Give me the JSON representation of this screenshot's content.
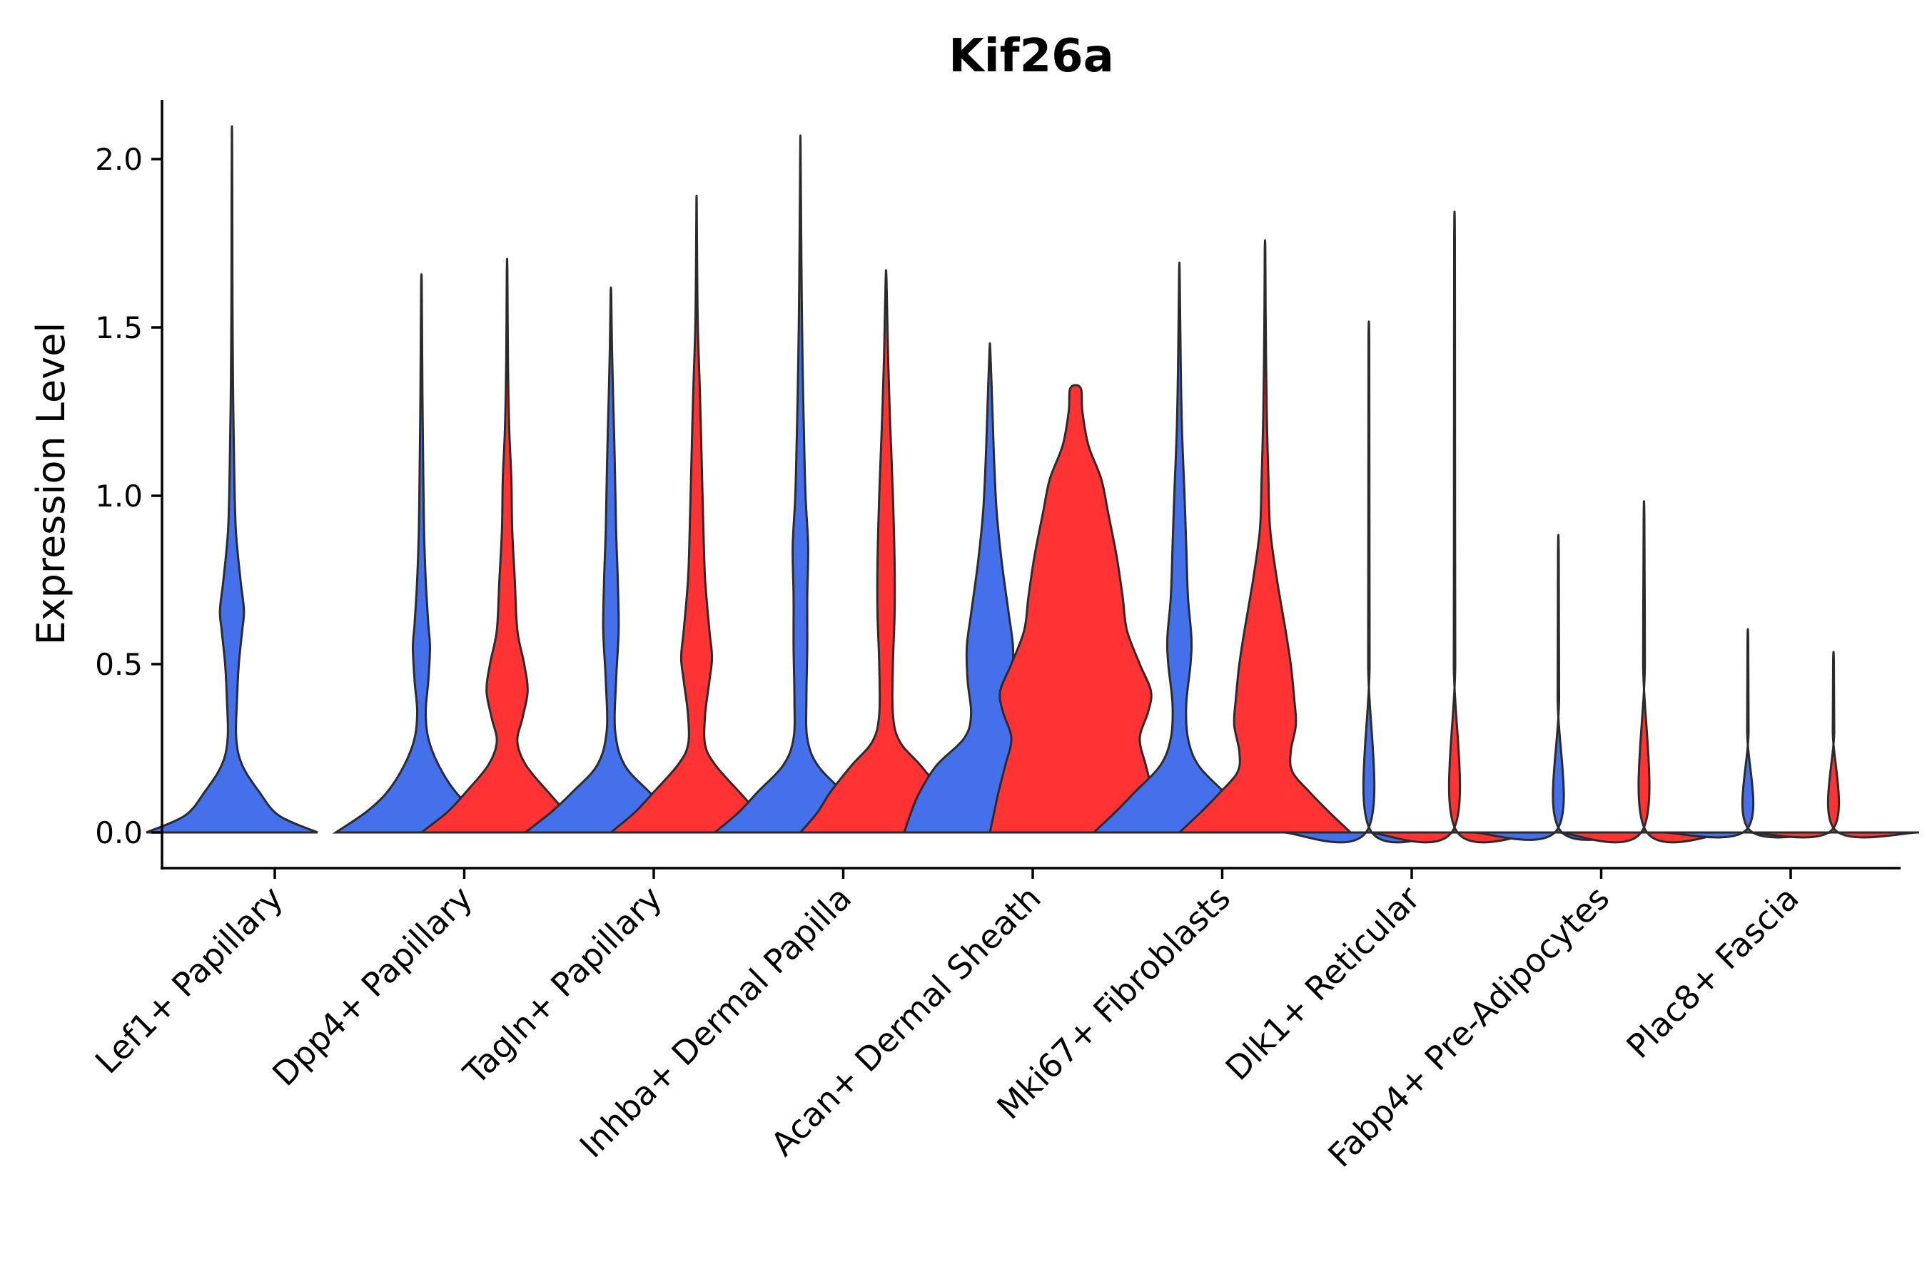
{
  "chart_data": {
    "type": "violin",
    "title": "Kif26a",
    "xlabel": "",
    "ylabel": "Expression Level",
    "ylim": [
      -0.1,
      2.2
    ],
    "yticks": [
      "0.0",
      "0.5",
      "1.0",
      "1.5",
      "2.0"
    ],
    "categories": [
      "Lef1+ Papillary",
      "Dpp4+ Papillary",
      "Tagln+ Papillary",
      "Inhba+ Dermal Papilla",
      "Acan+ Dermal Sheath",
      "Mki67+ Fibroblasts",
      "Dlk1+ Reticular",
      "Fabp4+ Pre-Adipocytes",
      "Plac8+ Fascia"
    ],
    "series_colors": {
      "group1": "#4570EB",
      "group2": "#FF3333"
    },
    "violins": [
      {
        "category": 0,
        "group": "group1",
        "max": 2.07,
        "profile": [
          [
            0,
            1.0
          ],
          [
            0.05,
            0.55
          ],
          [
            0.12,
            0.32
          ],
          [
            0.2,
            0.12
          ],
          [
            0.28,
            0.05
          ],
          [
            0.4,
            0.06
          ],
          [
            0.5,
            0.08
          ],
          [
            0.6,
            0.12
          ],
          [
            0.66,
            0.14
          ],
          [
            0.75,
            0.1
          ],
          [
            0.9,
            0.045
          ],
          [
            1.1,
            0.025
          ],
          [
            1.35,
            0.012
          ],
          [
            1.6,
            0.006
          ],
          [
            1.85,
            0.004
          ],
          [
            2.07,
            0.002
          ]
        ]
      },
      {
        "category": 1,
        "group": "group1",
        "max": 1.64,
        "profile": [
          [
            0,
            1.0
          ],
          [
            0.06,
            0.65
          ],
          [
            0.12,
            0.4
          ],
          [
            0.2,
            0.2
          ],
          [
            0.28,
            0.08
          ],
          [
            0.36,
            0.05
          ],
          [
            0.45,
            0.08
          ],
          [
            0.55,
            0.1
          ],
          [
            0.62,
            0.08
          ],
          [
            0.75,
            0.05
          ],
          [
            0.9,
            0.03
          ],
          [
            1.1,
            0.02
          ],
          [
            1.3,
            0.012
          ],
          [
            1.5,
            0.007
          ],
          [
            1.64,
            0.003
          ]
        ]
      },
      {
        "category": 1,
        "group": "group2",
        "max": 1.67,
        "profile": [
          [
            0,
            1.0
          ],
          [
            0.06,
            0.7
          ],
          [
            0.12,
            0.48
          ],
          [
            0.2,
            0.22
          ],
          [
            0.27,
            0.12
          ],
          [
            0.34,
            0.18
          ],
          [
            0.42,
            0.24
          ],
          [
            0.5,
            0.2
          ],
          [
            0.6,
            0.12
          ],
          [
            0.75,
            0.09
          ],
          [
            0.9,
            0.06
          ],
          [
            1.05,
            0.05
          ],
          [
            1.2,
            0.025
          ],
          [
            1.4,
            0.01
          ],
          [
            1.67,
            0.003
          ]
        ]
      },
      {
        "category": 2,
        "group": "group1",
        "max": 1.6,
        "profile": [
          [
            0,
            1.0
          ],
          [
            0.06,
            0.7
          ],
          [
            0.12,
            0.45
          ],
          [
            0.2,
            0.16
          ],
          [
            0.3,
            0.05
          ],
          [
            0.45,
            0.06
          ],
          [
            0.6,
            0.09
          ],
          [
            0.75,
            0.08
          ],
          [
            0.9,
            0.06
          ],
          [
            1.1,
            0.045
          ],
          [
            1.3,
            0.025
          ],
          [
            1.45,
            0.012
          ],
          [
            1.6,
            0.003
          ]
        ]
      },
      {
        "category": 2,
        "group": "group2",
        "max": 1.87,
        "profile": [
          [
            0,
            1.0
          ],
          [
            0.06,
            0.72
          ],
          [
            0.12,
            0.5
          ],
          [
            0.2,
            0.22
          ],
          [
            0.26,
            0.1
          ],
          [
            0.35,
            0.1
          ],
          [
            0.45,
            0.15
          ],
          [
            0.52,
            0.18
          ],
          [
            0.6,
            0.15
          ],
          [
            0.75,
            0.1
          ],
          [
            0.9,
            0.08
          ],
          [
            1.1,
            0.06
          ],
          [
            1.3,
            0.04
          ],
          [
            1.5,
            0.015
          ],
          [
            1.7,
            0.006
          ],
          [
            1.87,
            0.002
          ]
        ]
      },
      {
        "category": 3,
        "group": "group1",
        "max": 2.04,
        "profile": [
          [
            0,
            1.0
          ],
          [
            0.06,
            0.72
          ],
          [
            0.12,
            0.5
          ],
          [
            0.2,
            0.2
          ],
          [
            0.28,
            0.08
          ],
          [
            0.4,
            0.07
          ],
          [
            0.55,
            0.08
          ],
          [
            0.7,
            0.08
          ],
          [
            0.85,
            0.09
          ],
          [
            1.0,
            0.06
          ],
          [
            1.2,
            0.04
          ],
          [
            1.4,
            0.025
          ],
          [
            1.6,
            0.015
          ],
          [
            1.8,
            0.008
          ],
          [
            2.04,
            0.002
          ]
        ]
      },
      {
        "category": 3,
        "group": "group2",
        "max": 1.64,
        "profile": [
          [
            0,
            1.0
          ],
          [
            0.06,
            0.8
          ],
          [
            0.12,
            0.65
          ],
          [
            0.2,
            0.4
          ],
          [
            0.27,
            0.16
          ],
          [
            0.35,
            0.08
          ],
          [
            0.5,
            0.08
          ],
          [
            0.65,
            0.1
          ],
          [
            0.8,
            0.1
          ],
          [
            1.0,
            0.08
          ],
          [
            1.2,
            0.05
          ],
          [
            1.4,
            0.025
          ],
          [
            1.64,
            0.005
          ]
        ]
      },
      {
        "category": 4,
        "group": "group1",
        "max": 1.43,
        "profile": [
          [
            0,
            1.0
          ],
          [
            0.06,
            0.92
          ],
          [
            0.12,
            0.82
          ],
          [
            0.2,
            0.62
          ],
          [
            0.28,
            0.3
          ],
          [
            0.35,
            0.22
          ],
          [
            0.45,
            0.26
          ],
          [
            0.55,
            0.27
          ],
          [
            0.65,
            0.22
          ],
          [
            0.8,
            0.14
          ],
          [
            0.95,
            0.08
          ],
          [
            1.1,
            0.05
          ],
          [
            1.25,
            0.03
          ],
          [
            1.43,
            0.005
          ]
        ]
      },
      {
        "category": 4,
        "group": "group2",
        "max": 1.32,
        "profile": [
          [
            0,
            1.0
          ],
          [
            0.06,
            0.95
          ],
          [
            0.12,
            0.9
          ],
          [
            0.2,
            0.82
          ],
          [
            0.28,
            0.75
          ],
          [
            0.36,
            0.85
          ],
          [
            0.42,
            0.88
          ],
          [
            0.5,
            0.75
          ],
          [
            0.6,
            0.6
          ],
          [
            0.7,
            0.55
          ],
          [
            0.82,
            0.48
          ],
          [
            0.95,
            0.38
          ],
          [
            1.05,
            0.3
          ],
          [
            1.15,
            0.15
          ],
          [
            1.25,
            0.08
          ],
          [
            1.32,
            0.06
          ]
        ]
      },
      {
        "category": 5,
        "group": "group1",
        "max": 1.66,
        "profile": [
          [
            0,
            1.0
          ],
          [
            0.06,
            0.75
          ],
          [
            0.12,
            0.52
          ],
          [
            0.2,
            0.22
          ],
          [
            0.28,
            0.1
          ],
          [
            0.38,
            0.08
          ],
          [
            0.5,
            0.13
          ],
          [
            0.58,
            0.14
          ],
          [
            0.7,
            0.1
          ],
          [
            0.85,
            0.08
          ],
          [
            1.0,
            0.06
          ],
          [
            1.2,
            0.03
          ],
          [
            1.4,
            0.015
          ],
          [
            1.66,
            0.003
          ]
        ]
      },
      {
        "category": 5,
        "group": "group2",
        "max": 1.73,
        "profile": [
          [
            0,
            1.0
          ],
          [
            0.06,
            0.75
          ],
          [
            0.12,
            0.52
          ],
          [
            0.18,
            0.32
          ],
          [
            0.24,
            0.3
          ],
          [
            0.32,
            0.36
          ],
          [
            0.4,
            0.34
          ],
          [
            0.5,
            0.3
          ],
          [
            0.6,
            0.24
          ],
          [
            0.75,
            0.14
          ],
          [
            0.9,
            0.06
          ],
          [
            1.05,
            0.04
          ],
          [
            1.25,
            0.02
          ],
          [
            1.5,
            0.008
          ],
          [
            1.73,
            0.003
          ]
        ]
      },
      {
        "category": 6,
        "group": "group1",
        "max": 1.46,
        "profile": [
          [
            0,
            1.0
          ],
          [
            0.01,
            0.01
          ],
          [
            0.5,
            0.008
          ],
          [
            1.0,
            0.006
          ],
          [
            1.46,
            0.004
          ]
        ]
      },
      {
        "category": 6,
        "group": "group2",
        "max": 1.75,
        "profile": [
          [
            0,
            1.0
          ],
          [
            0.01,
            0.01
          ],
          [
            0.5,
            0.008
          ],
          [
            1.0,
            0.006
          ],
          [
            1.75,
            0.004
          ]
        ]
      },
      {
        "category": 7,
        "group": "group1",
        "max": 0.83,
        "profile": [
          [
            0,
            1.0
          ],
          [
            0.01,
            0.01
          ],
          [
            0.4,
            0.008
          ],
          [
            0.83,
            0.004
          ]
        ]
      },
      {
        "category": 7,
        "group": "group2",
        "max": 0.93,
        "profile": [
          [
            0,
            1.0
          ],
          [
            0.01,
            0.01
          ],
          [
            0.5,
            0.01
          ],
          [
            0.93,
            0.004
          ]
        ]
      },
      {
        "category": 8,
        "group": "group1",
        "max": 0.57,
        "profile": [
          [
            0,
            1.0
          ],
          [
            0.01,
            0.01
          ],
          [
            0.3,
            0.008
          ],
          [
            0.57,
            0.004
          ]
        ]
      },
      {
        "category": 8,
        "group": "group2",
        "max": 0.51,
        "profile": [
          [
            0,
            1.0
          ],
          [
            0.01,
            0.01
          ],
          [
            0.3,
            0.008
          ],
          [
            0.51,
            0.004
          ]
        ]
      }
    ]
  }
}
